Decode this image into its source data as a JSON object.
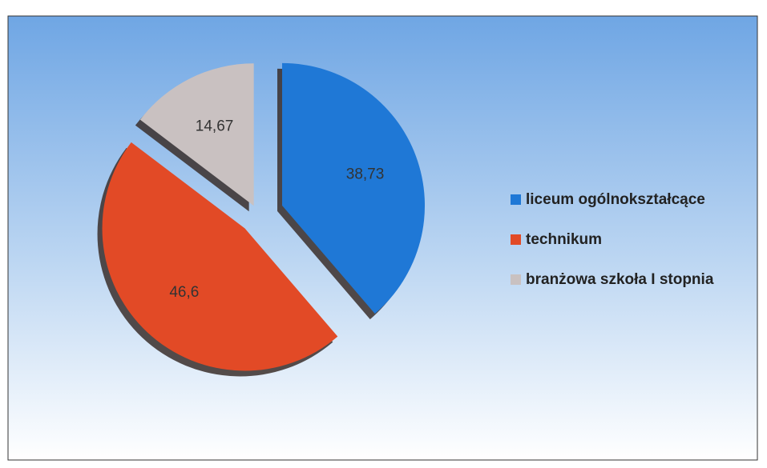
{
  "chart_data": {
    "type": "pie",
    "categories": [
      "liceum ogólnokształcące",
      "technikum",
      "branżowa szkoła I stopnia"
    ],
    "values": [
      38.73,
      46.6,
      14.67
    ],
    "value_labels": [
      "38,73",
      "46,6",
      "14,67"
    ],
    "colors": [
      "#1f78d6",
      "#e24a26",
      "#c9c1c1"
    ],
    "legend": "right"
  }
}
